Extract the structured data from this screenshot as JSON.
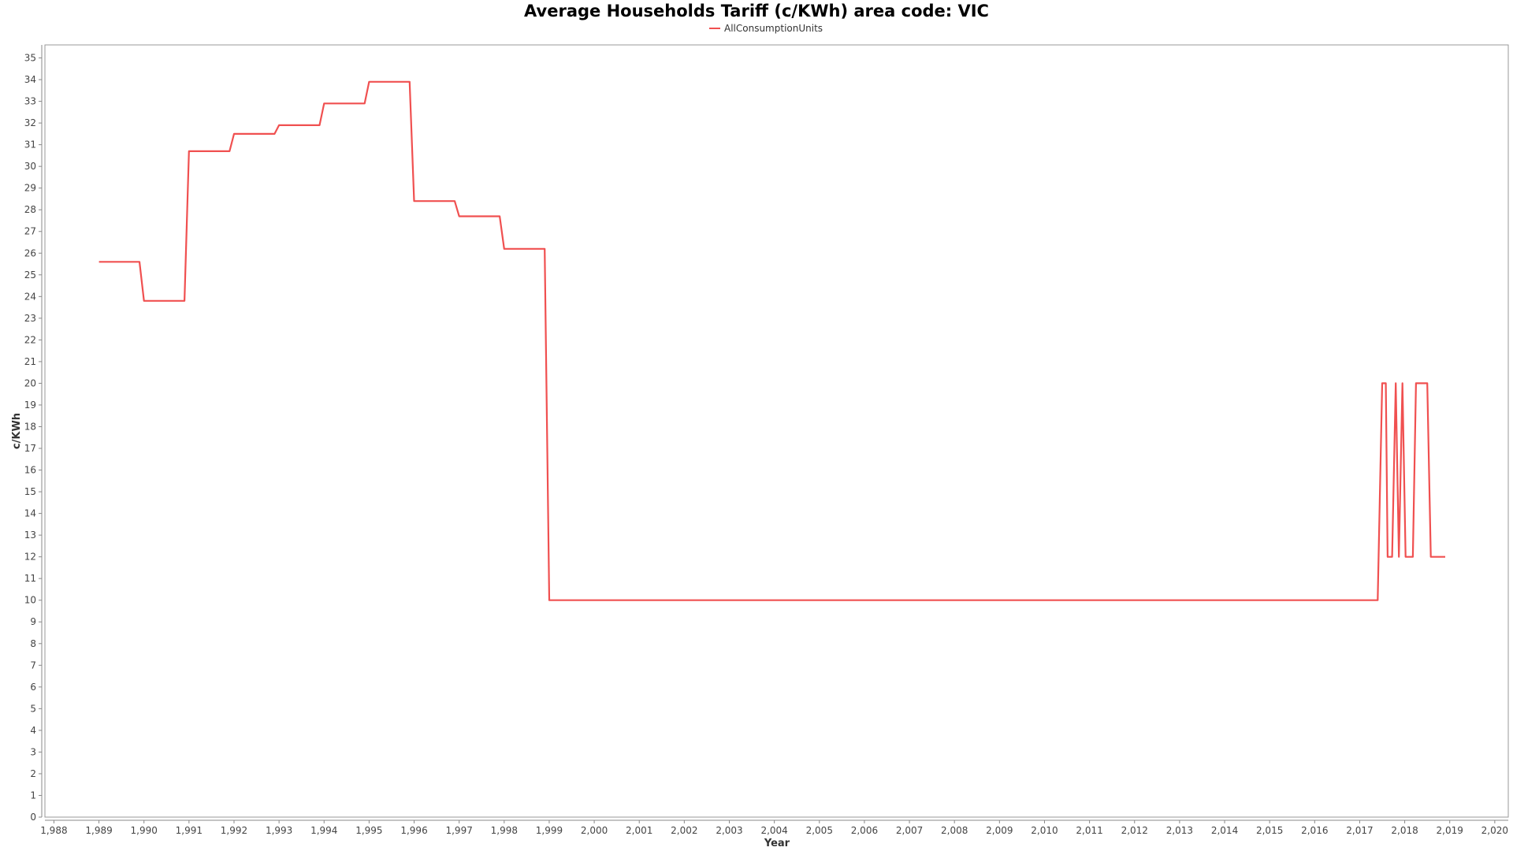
{
  "chart_data": {
    "type": "line",
    "title": "Average Households Tariff (c/KWh) area code: VIC",
    "xlabel": "Year",
    "ylabel": "c/KWh",
    "xlim": [
      1987.8,
      2020.3
    ],
    "ylim": [
      0,
      35.6
    ],
    "x_ticks": [
      1988,
      1989,
      1990,
      1991,
      1992,
      1993,
      1994,
      1995,
      1996,
      1997,
      1998,
      1999,
      2000,
      2001,
      2002,
      2003,
      2004,
      2005,
      2006,
      2007,
      2008,
      2009,
      2010,
      2011,
      2012,
      2013,
      2014,
      2015,
      2016,
      2017,
      2018,
      2019,
      2020
    ],
    "x_tick_labels": [
      "1,988",
      "1,989",
      "1,990",
      "1,991",
      "1,992",
      "1,993",
      "1,994",
      "1,995",
      "1,996",
      "1,997",
      "1,998",
      "1,999",
      "2,000",
      "2,001",
      "2,002",
      "2,003",
      "2,004",
      "2,005",
      "2,006",
      "2,007",
      "2,008",
      "2,009",
      "2,010",
      "2,011",
      "2,012",
      "2,013",
      "2,014",
      "2,015",
      "2,016",
      "2,017",
      "2,018",
      "2,019",
      "2,020"
    ],
    "y_ticks": [
      0,
      1,
      2,
      3,
      4,
      5,
      6,
      7,
      8,
      9,
      10,
      11,
      12,
      13,
      14,
      15,
      16,
      17,
      18,
      19,
      20,
      21,
      22,
      23,
      24,
      25,
      26,
      27,
      28,
      29,
      30,
      31,
      32,
      33,
      34,
      35
    ],
    "grid": false,
    "legend_position": "top-center",
    "series": [
      {
        "name": "AllConsumptionUnits",
        "color": "#f05050",
        "points": [
          [
            1989.0,
            25.6
          ],
          [
            1989.9,
            25.6
          ],
          [
            1990.0,
            23.8
          ],
          [
            1990.9,
            23.8
          ],
          [
            1991.0,
            30.7
          ],
          [
            1991.9,
            30.7
          ],
          [
            1992.0,
            31.5
          ],
          [
            1992.9,
            31.5
          ],
          [
            1993.0,
            31.9
          ],
          [
            1993.9,
            31.9
          ],
          [
            1994.0,
            32.9
          ],
          [
            1994.9,
            32.9
          ],
          [
            1995.0,
            33.9
          ],
          [
            1995.9,
            33.9
          ],
          [
            1996.0,
            28.4
          ],
          [
            1996.9,
            28.4
          ],
          [
            1997.0,
            27.7
          ],
          [
            1997.9,
            27.7
          ],
          [
            1998.0,
            26.2
          ],
          [
            1998.9,
            26.2
          ],
          [
            1999.0,
            10.0
          ],
          [
            2017.4,
            10.0
          ],
          [
            2017.5,
            20.0
          ],
          [
            2017.58,
            20.0
          ],
          [
            2017.62,
            12.0
          ],
          [
            2017.72,
            12.0
          ],
          [
            2017.8,
            20.0
          ],
          [
            2017.87,
            12.0
          ],
          [
            2017.95,
            20.0
          ],
          [
            2018.02,
            12.0
          ],
          [
            2018.18,
            12.0
          ],
          [
            2018.25,
            20.0
          ],
          [
            2018.5,
            20.0
          ],
          [
            2018.58,
            12.0
          ],
          [
            2018.9,
            12.0
          ]
        ]
      }
    ]
  }
}
